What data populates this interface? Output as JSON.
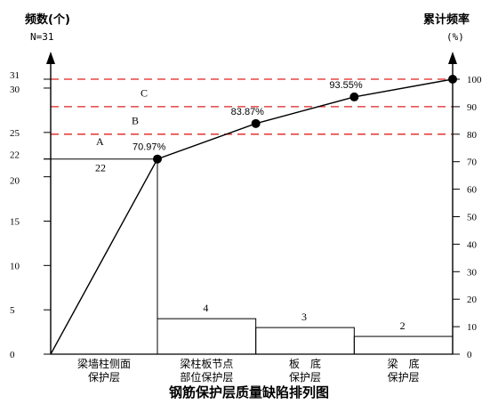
{
  "chart_data": {
    "type": "bar",
    "title": "钢筋保护层质量缺陷排列图",
    "y_left": {
      "label": "频数(个)",
      "sub": "N=31",
      "ticks": [
        0,
        5,
        10,
        15,
        20,
        22,
        25,
        30,
        31
      ],
      "ylim": [
        0,
        31
      ]
    },
    "y_right": {
      "label": "累计频率",
      "sub": "(%)",
      "ticks": [
        0,
        10,
        20,
        30,
        40,
        50,
        60,
        70,
        80,
        90,
        100
      ],
      "ylim": [
        0,
        100
      ]
    },
    "categories": [
      {
        "lines": [
          "梁墙柱侧面",
          "保护层"
        ]
      },
      {
        "lines": [
          "梁柱板节点",
          "部位保护层"
        ]
      },
      {
        "lines": [
          "板　底",
          "保护层"
        ]
      },
      {
        "lines": [
          "梁　底",
          "保护层"
        ]
      }
    ],
    "values": [
      22,
      4,
      3,
      2
    ],
    "cumulative": [
      70.97,
      83.87,
      93.55,
      100
    ],
    "cumulative_labels": [
      "70.97%",
      "83.87%",
      "93.55%",
      ""
    ],
    "zones": [
      {
        "name": "A",
        "upper_pct": 80
      },
      {
        "name": "B",
        "upper_pct": 90
      },
      {
        "name": "C",
        "upper_pct": 100
      }
    ],
    "colors": {
      "zone_line": "#e0211f",
      "bar": "#000000",
      "point": "#000000"
    }
  }
}
